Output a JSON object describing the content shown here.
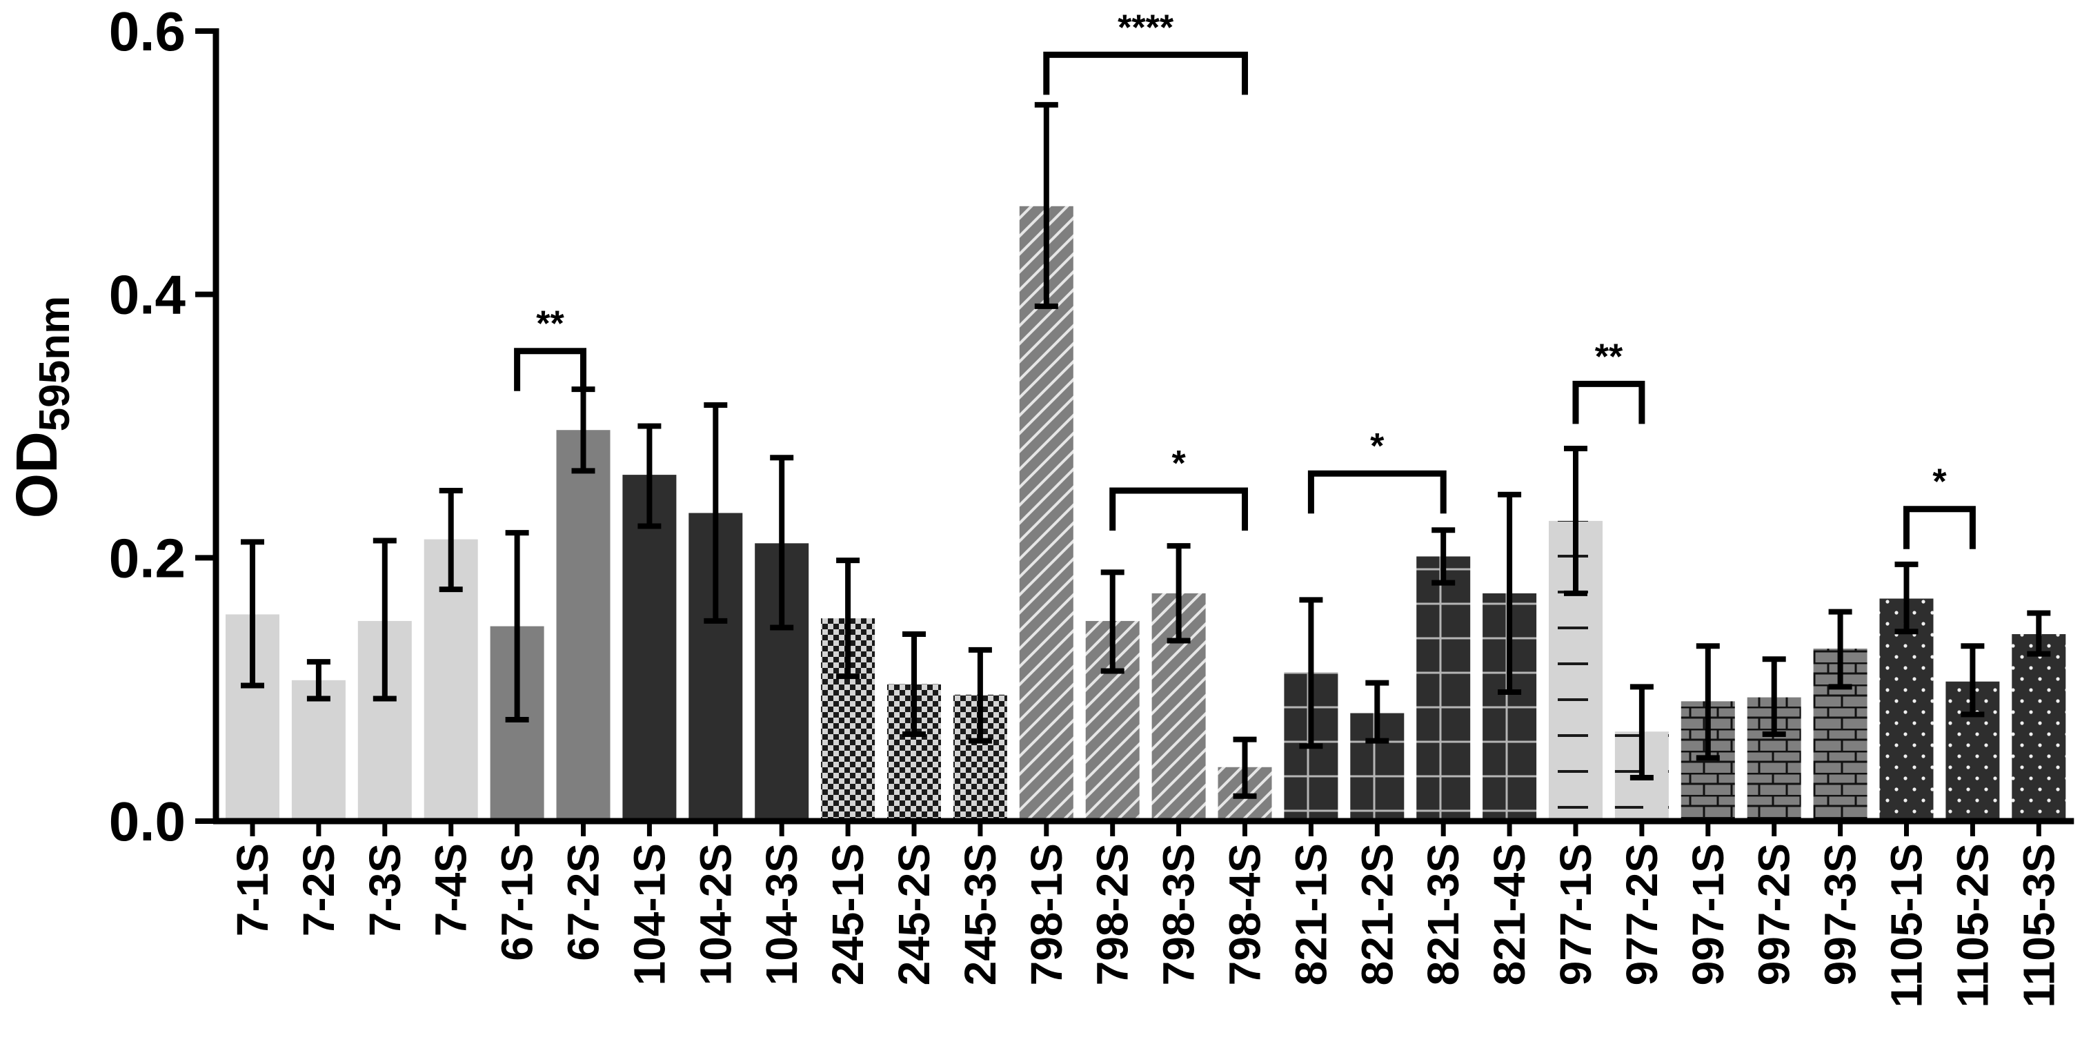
{
  "chart_data": {
    "type": "bar",
    "title": "",
    "xlabel": "",
    "ylabel": {
      "main": "OD",
      "sub": "595nm"
    },
    "ylim": [
      0,
      0.6
    ],
    "yticks": [
      "0.0",
      "0.2",
      "0.4",
      "0.6"
    ],
    "ytick_values": [
      0,
      0.2,
      0.4,
      0.6
    ],
    "grid": false,
    "legend": "none",
    "colors": {
      "light": "#d4d4d4",
      "mid": "#7f7f7f",
      "dark": "#2e2e2e",
      "axis": "#000000",
      "error_bar": "#000000"
    },
    "bars": [
      {
        "label": "7-1S",
        "value": 0.157,
        "err_low": 0.103,
        "err_high": 0.212,
        "fill": "light",
        "pattern": "none"
      },
      {
        "label": "7-2S",
        "value": 0.107,
        "err_low": 0.093,
        "err_high": 0.121,
        "fill": "light",
        "pattern": "none"
      },
      {
        "label": "7-3S",
        "value": 0.152,
        "err_low": 0.093,
        "err_high": 0.213,
        "fill": "light",
        "pattern": "none"
      },
      {
        "label": "7-4S",
        "value": 0.214,
        "err_low": 0.176,
        "err_high": 0.251,
        "fill": "light",
        "pattern": "none"
      },
      {
        "label": "67-1S",
        "value": 0.148,
        "err_low": 0.077,
        "err_high": 0.219,
        "fill": "mid",
        "pattern": "none"
      },
      {
        "label": "67-2S",
        "value": 0.297,
        "err_low": 0.266,
        "err_high": 0.328,
        "fill": "mid",
        "pattern": "none"
      },
      {
        "label": "104-1S",
        "value": 0.263,
        "err_low": 0.224,
        "err_high": 0.3,
        "fill": "dark",
        "pattern": "none"
      },
      {
        "label": "104-2S",
        "value": 0.234,
        "err_low": 0.152,
        "err_high": 0.316,
        "fill": "dark",
        "pattern": "none"
      },
      {
        "label": "104-3S",
        "value": 0.211,
        "err_low": 0.147,
        "err_high": 0.276,
        "fill": "dark",
        "pattern": "none"
      },
      {
        "label": "245-1S",
        "value": 0.154,
        "err_low": 0.11,
        "err_high": 0.198,
        "fill": "light",
        "pattern": "checker"
      },
      {
        "label": "245-2S",
        "value": 0.104,
        "err_low": 0.066,
        "err_high": 0.142,
        "fill": "light",
        "pattern": "checker"
      },
      {
        "label": "245-3S",
        "value": 0.096,
        "err_low": 0.061,
        "err_high": 0.13,
        "fill": "light",
        "pattern": "checker"
      },
      {
        "label": "798-1S",
        "value": 0.467,
        "err_low": 0.391,
        "err_high": 0.544,
        "fill": "mid",
        "pattern": "diagonal"
      },
      {
        "label": "798-2S",
        "value": 0.152,
        "err_low": 0.114,
        "err_high": 0.189,
        "fill": "mid",
        "pattern": "diagonal"
      },
      {
        "label": "798-3S",
        "value": 0.173,
        "err_low": 0.137,
        "err_high": 0.209,
        "fill": "mid",
        "pattern": "diagonal"
      },
      {
        "label": "798-4S",
        "value": 0.041,
        "err_low": 0.019,
        "err_high": 0.062,
        "fill": "mid",
        "pattern": "diagonal"
      },
      {
        "label": "821-1S",
        "value": 0.113,
        "err_low": 0.057,
        "err_high": 0.168,
        "fill": "dark",
        "pattern": "grid"
      },
      {
        "label": "821-2S",
        "value": 0.082,
        "err_low": 0.061,
        "err_high": 0.105,
        "fill": "dark",
        "pattern": "grid"
      },
      {
        "label": "821-3S",
        "value": 0.201,
        "err_low": 0.181,
        "err_high": 0.221,
        "fill": "dark",
        "pattern": "grid"
      },
      {
        "label": "821-4S",
        "value": 0.173,
        "err_low": 0.098,
        "err_high": 0.248,
        "fill": "dark",
        "pattern": "grid"
      },
      {
        "label": "977-1S",
        "value": 0.228,
        "err_low": 0.173,
        "err_high": 0.283,
        "fill": "light",
        "pattern": "dashes"
      },
      {
        "label": "977-2S",
        "value": 0.068,
        "err_low": 0.033,
        "err_high": 0.102,
        "fill": "light",
        "pattern": "dashes"
      },
      {
        "label": "997-1S",
        "value": 0.091,
        "err_low": 0.048,
        "err_high": 0.133,
        "fill": "mid",
        "pattern": "brick"
      },
      {
        "label": "997-2S",
        "value": 0.094,
        "err_low": 0.066,
        "err_high": 0.123,
        "fill": "mid",
        "pattern": "brick"
      },
      {
        "label": "997-3S",
        "value": 0.131,
        "err_low": 0.102,
        "err_high": 0.159,
        "fill": "mid",
        "pattern": "brick"
      },
      {
        "label": "1105-1S",
        "value": 0.169,
        "err_low": 0.144,
        "err_high": 0.195,
        "fill": "dark",
        "pattern": "dots"
      },
      {
        "label": "1105-2S",
        "value": 0.106,
        "err_low": 0.081,
        "err_high": 0.133,
        "fill": "dark",
        "pattern": "dots"
      },
      {
        "label": "1105-3S",
        "value": 0.142,
        "err_low": 0.127,
        "err_high": 0.158,
        "fill": "dark",
        "pattern": "dots"
      }
    ],
    "significance": [
      {
        "from": 4,
        "to": 5,
        "level": 0.357,
        "label": "**"
      },
      {
        "from": 12,
        "to": 15,
        "level": 0.582,
        "label": "****"
      },
      {
        "from": 13,
        "to": 15,
        "level": 0.251,
        "label": "*"
      },
      {
        "from": 16,
        "to": 18,
        "level": 0.264,
        "label": "*"
      },
      {
        "from": 20,
        "to": 21,
        "level": 0.332,
        "label": "**"
      },
      {
        "from": 25,
        "to": 26,
        "level": 0.237,
        "label": "*"
      }
    ]
  }
}
